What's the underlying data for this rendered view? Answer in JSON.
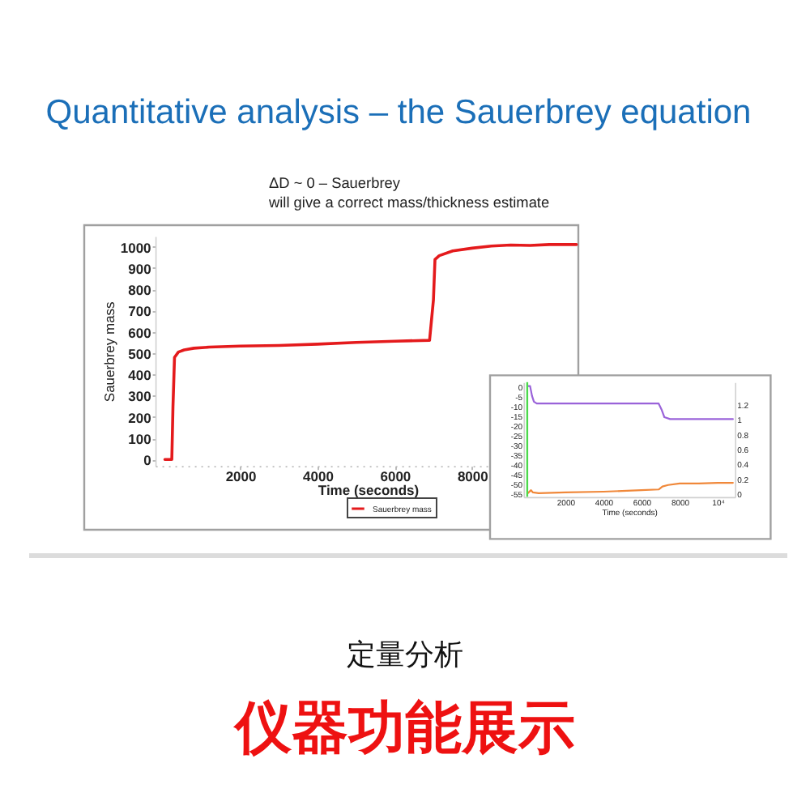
{
  "chart_data": [
    {
      "type": "line",
      "title": "Quantitative analysis – the Sauerbrey equation",
      "annotations": [
        "ΔD ~ 0 – Sauerbrey",
        "will give a correct mass/thickness estimate",
        "定量分析",
        "仪器功能展示"
      ],
      "xlabel": "Time (seconds)",
      "ylabel": "Sauerbrey mass",
      "xlim": [
        -200,
        10800
      ],
      "ylim": [
        -30,
        1050
      ],
      "xticks": [
        2000,
        4000,
        6000,
        8000
      ],
      "yticks": [
        0,
        100,
        200,
        300,
        400,
        500,
        600,
        700,
        800,
        900,
        1000
      ],
      "legend": "bottom",
      "series": [
        {
          "name": "Sauerbrey mass",
          "color": "#e41a1c",
          "x": [
            50,
            230,
            260,
            300,
            400,
            550,
            800,
            1200,
            2000,
            3000,
            4000,
            5000,
            6000,
            6900,
            7000,
            7040,
            7150,
            7500,
            8000,
            8500,
            9000,
            9500,
            10000,
            10700
          ],
          "values": [
            0,
            0,
            250,
            480,
            505,
            515,
            523,
            528,
            533,
            536,
            542,
            550,
            556,
            560,
            750,
            940,
            958,
            980,
            993,
            1003,
            1008,
            1006,
            1010,
            1010
          ]
        }
      ]
    },
    {
      "type": "line",
      "xlabel": "Time (seconds)",
      "xlim": [
        -200,
        10900
      ],
      "ylim": [
        -57,
        2
      ],
      "y2lim": [
        -0.05,
        1.5
      ],
      "xticks": [
        2000,
        4000,
        6000,
        8000,
        {
          "value": 10000,
          "label": "10⁴"
        }
      ],
      "yticks": [
        -55,
        -50,
        -45,
        -40,
        -35,
        -30,
        -25,
        -20,
        -15,
        -10,
        -5,
        0
      ],
      "y2ticks": [
        0,
        0.2,
        0.4,
        0.6,
        0.8,
        1,
        1.2
      ],
      "ref_lines": [
        {
          "axis": "x",
          "value": 0,
          "color": "#4cd94c"
        }
      ],
      "series": [
        {
          "color": "#9a63d9",
          "x": [
            0,
            150,
            250,
            350,
            500,
            1000,
            3000,
            5000,
            6900,
            7050,
            7200,
            7500,
            8500,
            10000,
            10800
          ],
          "values": [
            0,
            0,
            -5,
            -8,
            -9,
            -9,
            -9,
            -9,
            -9,
            -12,
            -16,
            -17,
            -17,
            -17,
            -17
          ]
        },
        {
          "color": "#f0883a",
          "axis": "y2",
          "x": [
            30,
            200,
            300,
            600,
            2000,
            4000,
            6000,
            6900,
            7100,
            7400,
            8000,
            9000,
            10000,
            10800
          ],
          "values": [
            0,
            0.04,
            0.01,
            0,
            0.01,
            0.02,
            0.04,
            0.05,
            0.09,
            0.11,
            0.13,
            0.13,
            0.14,
            0.14
          ]
        }
      ]
    }
  ]
}
